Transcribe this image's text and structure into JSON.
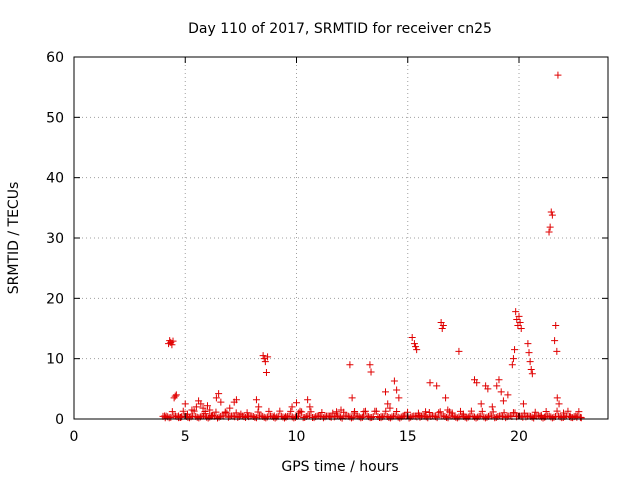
{
  "chart_data": {
    "type": "scatter",
    "title": "Day 110 of 2017, SRMTID for receiver cn25",
    "xlabel": "GPS time / hours",
    "ylabel": "SRMTID / TECUs",
    "xlim": [
      0,
      24
    ],
    "ylim": [
      0,
      60
    ],
    "x_ticks": [
      0,
      5,
      10,
      15,
      20
    ],
    "y_ticks": [
      0,
      10,
      20,
      30,
      40,
      50,
      60
    ],
    "grid": true,
    "marker": "+",
    "color": "#e00000",
    "series": [
      {
        "name": "SRMTID",
        "points": [
          [
            4.1,
            0.2
          ],
          [
            4.25,
            12.5
          ],
          [
            4.3,
            13.0
          ],
          [
            4.35,
            12.7
          ],
          [
            4.4,
            12.3
          ],
          [
            4.45,
            12.9
          ],
          [
            4.5,
            3.5
          ],
          [
            4.55,
            3.8
          ],
          [
            4.6,
            4.0
          ],
          [
            4.7,
            0.5
          ],
          [
            4.8,
            0.3
          ],
          [
            5.0,
            2.5
          ],
          [
            5.1,
            0.8
          ],
          [
            5.3,
            1.5
          ],
          [
            5.5,
            2.0
          ],
          [
            5.6,
            3.0
          ],
          [
            5.7,
            2.5
          ],
          [
            5.8,
            1.8
          ],
          [
            5.9,
            0.9
          ],
          [
            6.0,
            2.2
          ],
          [
            6.1,
            1.5
          ],
          [
            6.2,
            0.6
          ],
          [
            6.4,
            3.5
          ],
          [
            6.5,
            4.2
          ],
          [
            6.6,
            2.8
          ],
          [
            6.8,
            1.0
          ],
          [
            7.0,
            1.8
          ],
          [
            7.2,
            2.8
          ],
          [
            7.3,
            3.2
          ],
          [
            7.5,
            0.8
          ],
          [
            7.8,
            0.5
          ],
          [
            8.2,
            3.2
          ],
          [
            8.3,
            2.0
          ],
          [
            8.5,
            10.5
          ],
          [
            8.55,
            10.0
          ],
          [
            8.6,
            9.5
          ],
          [
            8.65,
            7.7
          ],
          [
            8.7,
            10.3
          ],
          [
            9.0,
            0.5
          ],
          [
            9.5,
            0.4
          ],
          [
            9.8,
            2.0
          ],
          [
            10.0,
            2.7
          ],
          [
            10.1,
            1.0
          ],
          [
            10.5,
            3.2
          ],
          [
            10.6,
            2.0
          ],
          [
            11.0,
            0.5
          ],
          [
            11.5,
            0.4
          ],
          [
            11.8,
            1.2
          ],
          [
            12.0,
            1.5
          ],
          [
            12.4,
            9.0
          ],
          [
            12.5,
            3.5
          ],
          [
            12.6,
            1.0
          ],
          [
            13.0,
            0.5
          ],
          [
            13.3,
            9.0
          ],
          [
            13.35,
            7.8
          ],
          [
            13.8,
            0.4
          ],
          [
            14.0,
            4.5
          ],
          [
            14.1,
            2.5
          ],
          [
            14.2,
            1.8
          ],
          [
            14.4,
            6.3
          ],
          [
            14.5,
            4.8
          ],
          [
            14.6,
            3.5
          ],
          [
            14.8,
            0.5
          ],
          [
            15.2,
            13.5
          ],
          [
            15.3,
            12.5
          ],
          [
            15.35,
            12.0
          ],
          [
            15.4,
            11.5
          ],
          [
            15.5,
            0.6
          ],
          [
            15.8,
            1.2
          ],
          [
            16.0,
            6.0
          ],
          [
            16.3,
            5.5
          ],
          [
            16.5,
            16.0
          ],
          [
            16.55,
            15.0
          ],
          [
            16.6,
            15.5
          ],
          [
            16.7,
            3.5
          ],
          [
            16.8,
            1.5
          ],
          [
            17.0,
            1.0
          ],
          [
            17.3,
            11.2
          ],
          [
            17.5,
            0.8
          ],
          [
            17.8,
            0.5
          ],
          [
            18.0,
            6.5
          ],
          [
            18.1,
            6.0
          ],
          [
            18.3,
            2.5
          ],
          [
            18.5,
            5.5
          ],
          [
            18.6,
            5.0
          ],
          [
            18.8,
            2.0
          ],
          [
            19.0,
            5.5
          ],
          [
            19.1,
            6.5
          ],
          [
            19.2,
            4.5
          ],
          [
            19.3,
            3.0
          ],
          [
            19.5,
            4.0
          ],
          [
            19.7,
            9.0
          ],
          [
            19.75,
            10.0
          ],
          [
            19.8,
            11.5
          ],
          [
            19.85,
            17.8
          ],
          [
            19.9,
            16.5
          ],
          [
            19.95,
            15.5
          ],
          [
            20.0,
            17.0
          ],
          [
            20.05,
            16.0
          ],
          [
            20.1,
            15.0
          ],
          [
            20.2,
            2.5
          ],
          [
            20.4,
            12.5
          ],
          [
            20.45,
            11.0
          ],
          [
            20.5,
            9.5
          ],
          [
            20.55,
            8.2
          ],
          [
            20.6,
            7.5
          ],
          [
            20.7,
            0.5
          ],
          [
            21.0,
            0.6
          ],
          [
            21.2,
            0.4
          ],
          [
            21.35,
            31.0
          ],
          [
            21.4,
            31.8
          ],
          [
            21.45,
            34.3
          ],
          [
            21.5,
            33.8
          ],
          [
            21.6,
            13.0
          ],
          [
            21.65,
            15.5
          ],
          [
            21.7,
            11.2
          ],
          [
            21.72,
            3.5
          ],
          [
            21.75,
            57.0
          ],
          [
            21.8,
            2.5
          ],
          [
            22.0,
            1.0
          ],
          [
            22.3,
            0.5
          ],
          [
            22.6,
            0.3
          ],
          [
            22.8,
            0.2
          ]
        ]
      }
    ]
  }
}
